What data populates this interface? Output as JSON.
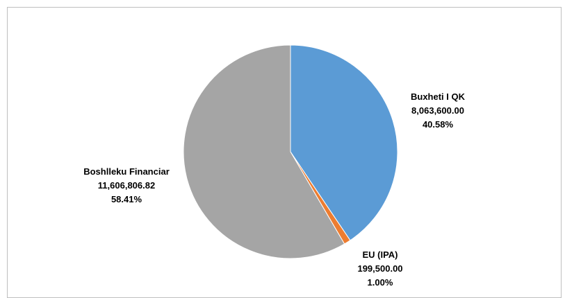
{
  "chart_data": {
    "type": "pie",
    "title": "",
    "slices": [
      {
        "label": "Buxheti I QK",
        "value_text": "8,063,600.00",
        "percent_text": "40.58%",
        "value": 8063600.0,
        "percent": 40.58,
        "color": "#5b9bd5"
      },
      {
        "label": "EU (IPA)",
        "value_text": "199,500.00",
        "percent_text": "1.00%",
        "value": 199500.0,
        "percent": 1.0,
        "color": "#ed7d31"
      },
      {
        "label": "Boshlleku Financiar",
        "value_text": "11,606,806.82",
        "percent_text": "58.41%",
        "value": 11606806.82,
        "percent": 58.41,
        "color": "#a5a5a5"
      }
    ],
    "start_angle_deg": 0,
    "direction": "clockwise",
    "legend": "none"
  }
}
